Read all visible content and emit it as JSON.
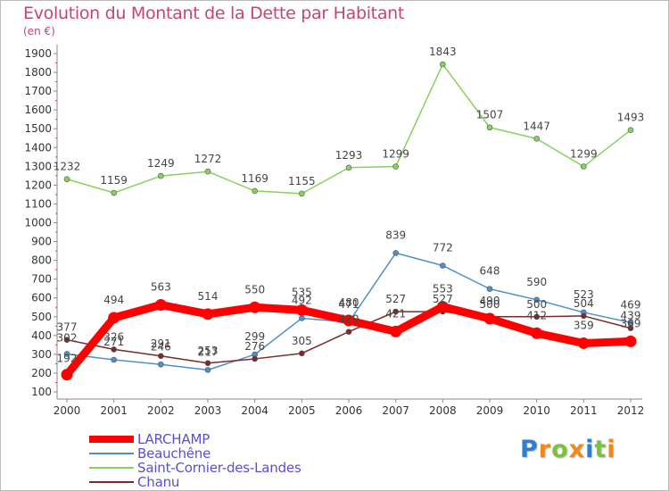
{
  "title": "Evolution du Montant de la Dette par Habitant",
  "subtitle": "(en €)",
  "logo": {
    "letters": [
      "P",
      "r",
      "o",
      "x",
      "i",
      "t",
      "i"
    ],
    "colors": [
      "#2f7fd0",
      "#ef8a1a",
      "#7cc242",
      "#ef8a1a",
      "#2f7fd0",
      "#7cc242",
      "#ef8a1a"
    ]
  },
  "chart_data": {
    "type": "line",
    "x": [
      "2000",
      "2001",
      "2002",
      "2003",
      "2004",
      "2005",
      "2006",
      "2007",
      "2008",
      "2009",
      "2010",
      "2011",
      "2012"
    ],
    "ylim": [
      100,
      1900
    ],
    "yticks": [
      100,
      200,
      300,
      400,
      500,
      600,
      700,
      800,
      900,
      1000,
      1100,
      1200,
      1300,
      1400,
      1500,
      1600,
      1700,
      1800,
      1900
    ],
    "grid": false,
    "legend_position": "bottom-left",
    "series": [
      {
        "name": "LARCHAMP",
        "color": "#ff0000",
        "values": [
          192,
          494,
          563,
          514,
          550,
          535,
          480,
          421,
          553,
          490,
          412,
          359,
          369
        ]
      },
      {
        "name": "Beauchêne",
        "color": "#4f8fc8",
        "values": [
          302,
          271,
          246,
          217,
          299,
          492,
          471,
          839,
          772,
          648,
          590,
          523,
          469
        ]
      },
      {
        "name": "Saint-Cornier-des-Landes",
        "color": "#88d060",
        "values": [
          1232,
          1159,
          1249,
          1272,
          1169,
          1155,
          1293,
          1299,
          1843,
          1507,
          1447,
          1299,
          1493
        ]
      },
      {
        "name": "Chanu",
        "color": "#7a2a2a",
        "values": [
          377,
          326,
          291,
          253,
          276,
          305,
          420,
          527,
          527,
          500,
          500,
          504,
          439
        ]
      }
    ]
  }
}
